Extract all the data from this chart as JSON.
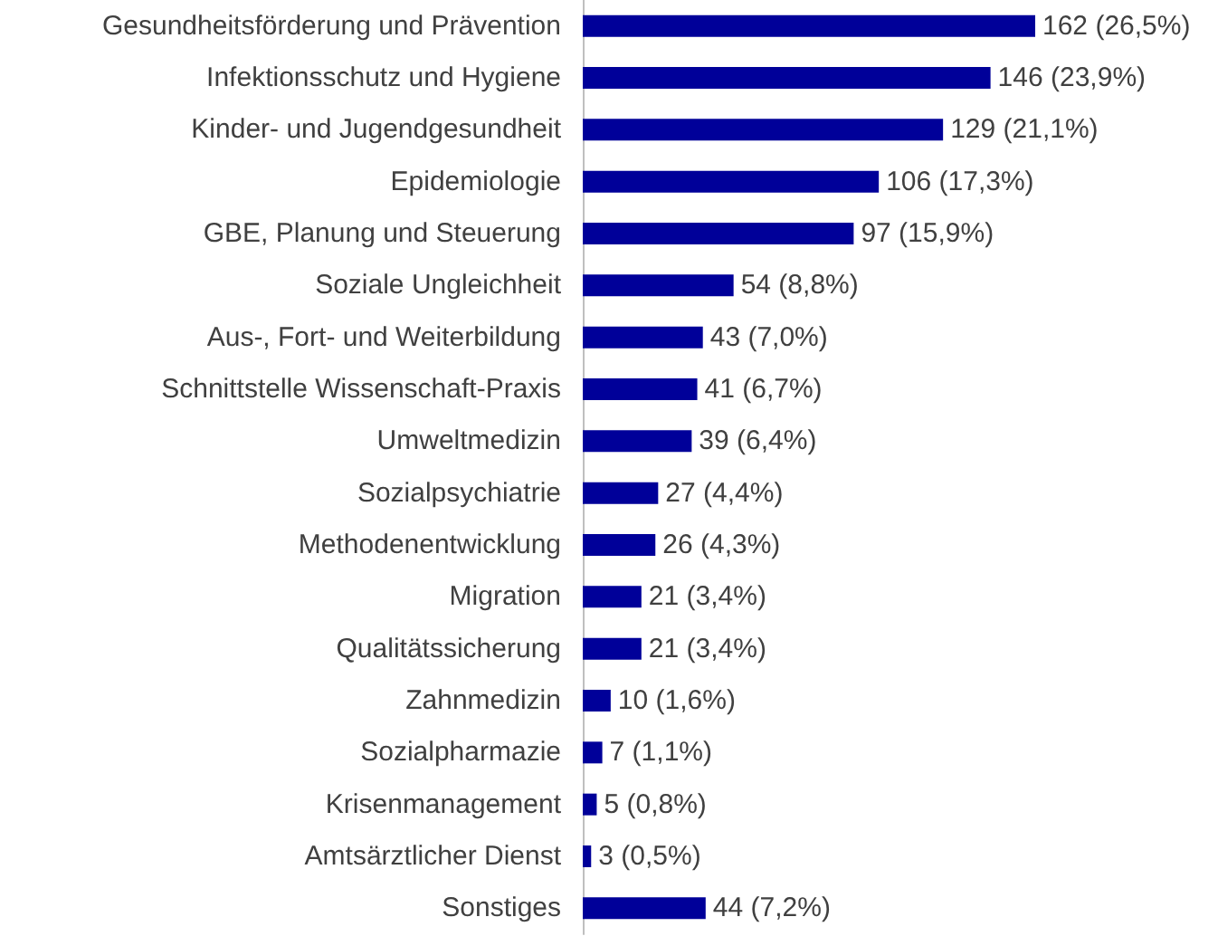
{
  "chart_data": {
    "type": "bar",
    "orientation": "horizontal",
    "categories": [
      "Gesundheitsförderung und Prävention",
      "Infektionsschutz und Hygiene",
      "Kinder- und Jugendgesundheit",
      "Epidemiologie",
      "GBE, Planung und Steuerung",
      "Soziale Ungleichheit",
      "Aus-, Fort- und Weiterbildung",
      "Schnittstelle Wissenschaft-Praxis",
      "Umweltmedizin",
      "Sozialpsychiatrie",
      "Methodenentwicklung",
      "Migration",
      "Qualitätssicherung",
      "Zahnmedizin",
      "Sozialpharmazie",
      "Krisenmanagement",
      "Amtsärztlicher Dienst",
      "Sonstiges"
    ],
    "values": [
      162,
      146,
      129,
      106,
      97,
      54,
      43,
      41,
      39,
      27,
      26,
      21,
      21,
      10,
      7,
      5,
      3,
      44
    ],
    "value_labels": [
      "162 (26,5%)",
      "146 (23,9%)",
      "129 (21,1%)",
      "106 (17,3%)",
      "97 (15,9%)",
      "54 (8,8%)",
      "43 (7,0%)",
      "41 (6,7%)",
      "39 (6,4%)",
      "27 (4,4%)",
      "26 (4,3%)",
      "21 (3,4%)",
      "21 (3,4%)",
      "10 (1,6%)",
      "7 (1,1%)",
      "5 (0,8%)",
      "3 (0,5%)",
      "44 (7,2%)"
    ],
    "color": "#000099"
  }
}
